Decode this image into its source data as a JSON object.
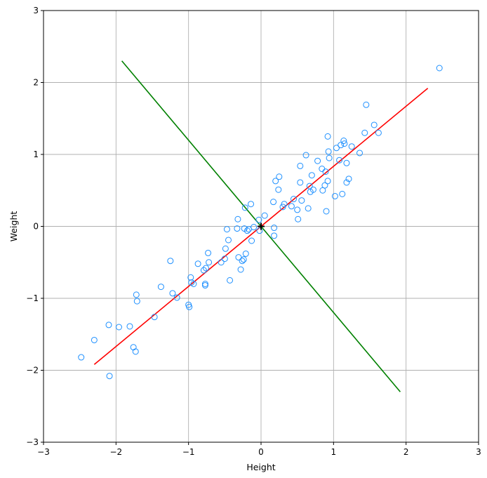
{
  "chart_data": {
    "type": "scatter",
    "title": "",
    "xlabel": "Height",
    "ylabel": "Weight",
    "xlim": [
      -3,
      3
    ],
    "ylim": [
      -3,
      3
    ],
    "xticks": [
      -3,
      -2,
      -1,
      0,
      1,
      2,
      3
    ],
    "yticks": [
      -3,
      -2,
      -1,
      0,
      1,
      2,
      3
    ],
    "xtick_labels": [
      "−3",
      "−2",
      "−1",
      "0",
      "1",
      "2",
      "3"
    ],
    "ytick_labels": [
      "−3",
      "−2",
      "−1",
      "0",
      "1",
      "2",
      "3"
    ],
    "grid": true,
    "colors": {
      "points": "#1e90ff",
      "line1": "#ff0000",
      "line2": "#008000",
      "center": "#000000",
      "grid": "#b0b0b0"
    },
    "scatter_points": [
      [
        -2.48,
        -1.82
      ],
      [
        -2.3,
        -1.58
      ],
      [
        -2.1,
        -1.37
      ],
      [
        -2.09,
        -2.08
      ],
      [
        -1.96,
        -1.4
      ],
      [
        -1.81,
        -1.39
      ],
      [
        -1.76,
        -1.68
      ],
      [
        -1.73,
        -1.74
      ],
      [
        -1.72,
        -0.95
      ],
      [
        -1.71,
        -1.04
      ],
      [
        -1.47,
        -1.26
      ],
      [
        -1.38,
        -0.84
      ],
      [
        -1.25,
        -0.48
      ],
      [
        -1.22,
        -0.93
      ],
      [
        -1.16,
        -0.99
      ],
      [
        -1.0,
        -1.09
      ],
      [
        -0.99,
        -1.12
      ],
      [
        -0.97,
        -0.71
      ],
      [
        -0.96,
        -0.78
      ],
      [
        -0.93,
        -0.8
      ],
      [
        -0.87,
        -0.52
      ],
      [
        -0.79,
        -0.61
      ],
      [
        -0.77,
        -0.8
      ],
      [
        -0.77,
        -0.82
      ],
      [
        -0.76,
        -0.58
      ],
      [
        -0.73,
        -0.37
      ],
      [
        -0.72,
        -0.5
      ],
      [
        -0.55,
        -0.5
      ],
      [
        -0.5,
        -0.45
      ],
      [
        -0.49,
        -0.31
      ],
      [
        -0.47,
        -0.04
      ],
      [
        -0.45,
        -0.19
      ],
      [
        -0.43,
        -0.75
      ],
      [
        -0.33,
        -0.03
      ],
      [
        -0.32,
        0.1
      ],
      [
        -0.31,
        -0.43
      ],
      [
        -0.28,
        -0.6
      ],
      [
        -0.26,
        -0.48
      ],
      [
        -0.24,
        -0.46
      ],
      [
        -0.23,
        -0.03
      ],
      [
        -0.22,
        0.26
      ],
      [
        -0.21,
        -0.38
      ],
      [
        -0.19,
        -0.06
      ],
      [
        -0.17,
        -0.04
      ],
      [
        -0.14,
        0.31
      ],
      [
        -0.13,
        -0.2
      ],
      [
        -0.1,
        -0.01
      ],
      [
        -0.03,
        0.09
      ],
      [
        -0.02,
        -0.06
      ],
      [
        0.05,
        0.15
      ],
      [
        0.17,
        0.34
      ],
      [
        0.18,
        -0.02
      ],
      [
        0.18,
        -0.13
      ],
      [
        0.2,
        0.63
      ],
      [
        0.24,
        0.51
      ],
      [
        0.25,
        0.69
      ],
      [
        0.3,
        0.27
      ],
      [
        0.32,
        0.31
      ],
      [
        0.42,
        0.28
      ],
      [
        0.45,
        0.38
      ],
      [
        0.5,
        0.23
      ],
      [
        0.51,
        0.1
      ],
      [
        0.54,
        0.84
      ],
      [
        0.54,
        0.61
      ],
      [
        0.56,
        0.36
      ],
      [
        0.62,
        0.99
      ],
      [
        0.65,
        0.25
      ],
      [
        0.67,
        0.56
      ],
      [
        0.68,
        0.48
      ],
      [
        0.7,
        0.71
      ],
      [
        0.72,
        0.51
      ],
      [
        0.78,
        0.91
      ],
      [
        0.84,
        0.8
      ],
      [
        0.85,
        0.5
      ],
      [
        0.88,
        0.57
      ],
      [
        0.89,
        0.76
      ],
      [
        0.9,
        0.21
      ],
      [
        0.92,
        0.63
      ],
      [
        0.92,
        1.25
      ],
      [
        0.93,
        1.04
      ],
      [
        0.94,
        0.95
      ],
      [
        1.02,
        0.42
      ],
      [
        1.04,
        1.09
      ],
      [
        1.08,
        0.92
      ],
      [
        1.1,
        1.13
      ],
      [
        1.12,
        0.45
      ],
      [
        1.14,
        1.19
      ],
      [
        1.15,
        1.15
      ],
      [
        1.18,
        0.88
      ],
      [
        1.18,
        0.61
      ],
      [
        1.21,
        0.66
      ],
      [
        1.25,
        1.11
      ],
      [
        1.36,
        1.02
      ],
      [
        1.43,
        1.3
      ],
      [
        1.45,
        1.69
      ],
      [
        1.56,
        1.41
      ],
      [
        1.62,
        1.3
      ],
      [
        2.46,
        2.2
      ]
    ],
    "lines": [
      {
        "points": [
          [
            -2.3,
            -1.92
          ],
          [
            2.3,
            1.92
          ]
        ]
      },
      {
        "points": [
          [
            -1.92,
            2.3
          ],
          [
            1.92,
            -2.3
          ]
        ]
      }
    ],
    "center_marker": [
      0,
      0
    ]
  }
}
